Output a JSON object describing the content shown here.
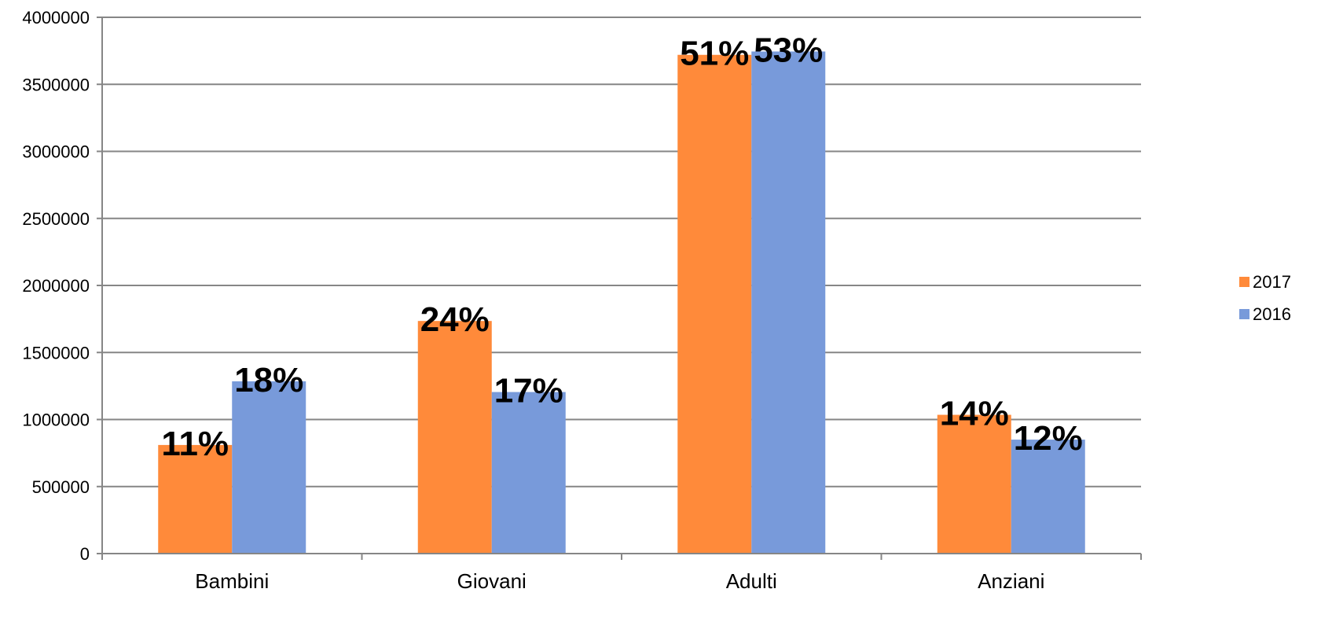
{
  "chart_data": {
    "type": "bar",
    "categories": [
      "Bambini",
      "Giovani",
      "Adulti",
      "Anziani"
    ],
    "series": [
      {
        "name": "2017",
        "color": "#FF8A3A",
        "values": [
          810000,
          1735000,
          3720000,
          1035000
        ],
        "labels": [
          "11%",
          "24%",
          "51%",
          "14%"
        ]
      },
      {
        "name": "2016",
        "color": "#789ADA",
        "values": [
          1285000,
          1205000,
          3745000,
          850000
        ],
        "labels": [
          "18%",
          "17%",
          "53%",
          "12%"
        ]
      }
    ],
    "ylim": [
      0,
      4000000
    ],
    "yticks": [
      "0",
      "500000",
      "1000000",
      "1500000",
      "2000000",
      "2500000",
      "3000000",
      "3500000",
      "4000000"
    ],
    "grid": true,
    "legend_position": "right",
    "title": "",
    "xlabel": "",
    "ylabel": ""
  }
}
